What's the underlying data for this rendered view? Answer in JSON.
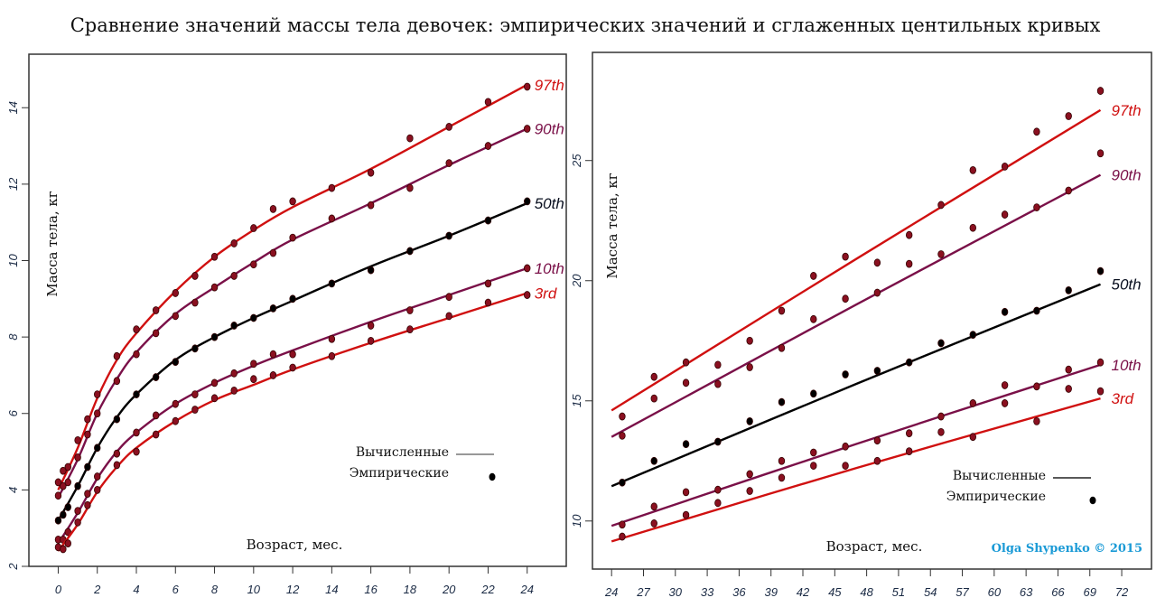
{
  "title": "Сравнение значений массы тела девочек:  эмпирических значений и сглаженных центильных кривых",
  "watermark": "Olga Shypenko  © 2015",
  "colors": {
    "p97": "#d01010",
    "p90": "#7a1048",
    "p50": "#000000",
    "p10": "#7a1048",
    "p3": "#d01010",
    "dot": "#8a1020",
    "legend_line": "#777777"
  },
  "legend": {
    "fitted": "Вычисленные",
    "empirical": "Эмпирические"
  },
  "chart_data": [
    {
      "type": "line",
      "xlabel": "Возраст, мес.",
      "ylabel": "Масса тела, кг",
      "xlim": [
        -1.5,
        26
      ],
      "ylim": [
        2,
        15.4
      ],
      "xticks": [
        0,
        2,
        4,
        6,
        8,
        10,
        12,
        14,
        16,
        18,
        20,
        22,
        24
      ],
      "yticks": [
        2,
        4,
        6,
        8,
        10,
        12,
        14
      ],
      "grid": false,
      "legend_position": "bottom-right",
      "empirical_x": [
        0,
        0.25,
        0.5,
        1,
        1.5,
        2,
        3,
        4,
        5,
        6,
        7,
        8,
        9,
        10,
        11,
        12,
        14,
        16,
        18,
        20,
        22,
        24
      ],
      "fitted_x": [
        0,
        1,
        2,
        3,
        4,
        6,
        8,
        10,
        12,
        16,
        20,
        24
      ],
      "series": [
        {
          "name": "97th",
          "color_key": "p97",
          "empirical": [
            4.2,
            4.5,
            4.6,
            5.3,
            5.85,
            6.5,
            7.5,
            8.2,
            8.7,
            9.15,
            9.6,
            10.1,
            10.45,
            10.85,
            11.35,
            11.55,
            11.9,
            12.3,
            13.2,
            13.5,
            14.15,
            14.55
          ],
          "fitted": [
            4.0,
            5.1,
            6.4,
            7.4,
            8.1,
            9.2,
            10.1,
            10.8,
            11.4,
            12.4,
            13.5,
            14.6
          ]
        },
        {
          "name": "90th",
          "color_key": "p90",
          "empirical": [
            3.85,
            4.1,
            4.2,
            4.85,
            5.45,
            6.0,
            6.85,
            7.55,
            8.1,
            8.55,
            8.9,
            9.3,
            9.6,
            9.9,
            10.2,
            10.6,
            11.1,
            11.45,
            11.9,
            12.55,
            13.0,
            13.45
          ],
          "fitted": [
            3.8,
            4.8,
            6.0,
            6.9,
            7.6,
            8.6,
            9.3,
            9.95,
            10.55,
            11.5,
            12.5,
            13.45
          ]
        },
        {
          "name": "50th",
          "color_key": "p50",
          "empirical": [
            3.2,
            3.35,
            3.55,
            4.1,
            4.6,
            5.1,
            5.85,
            6.5,
            6.95,
            7.35,
            7.7,
            8.0,
            8.3,
            8.5,
            8.75,
            9.0,
            9.4,
            9.75,
            10.25,
            10.65,
            11.05,
            11.55
          ],
          "fitted": [
            3.2,
            4.1,
            5.1,
            5.9,
            6.5,
            7.4,
            8.0,
            8.5,
            8.95,
            9.85,
            10.65,
            11.5
          ]
        },
        {
          "name": "10th",
          "color_key": "p10",
          "empirical": [
            2.7,
            2.7,
            2.9,
            3.45,
            3.9,
            4.35,
            4.95,
            5.5,
            5.95,
            6.25,
            6.5,
            6.8,
            7.05,
            7.3,
            7.55,
            7.55,
            7.95,
            8.3,
            8.7,
            9.05,
            9.4,
            9.8
          ],
          "fitted": [
            2.6,
            3.4,
            4.3,
            5.0,
            5.5,
            6.25,
            6.8,
            7.25,
            7.65,
            8.4,
            9.1,
            9.8
          ]
        },
        {
          "name": "3rd",
          "color_key": "p3",
          "empirical": [
            2.5,
            2.45,
            2.6,
            3.15,
            3.6,
            4.0,
            4.65,
            5.0,
            5.45,
            5.8,
            6.1,
            6.4,
            6.6,
            6.9,
            7.0,
            7.2,
            7.5,
            7.9,
            8.2,
            8.55,
            8.9,
            9.1
          ],
          "fitted": [
            2.4,
            3.1,
            3.95,
            4.6,
            5.1,
            5.8,
            6.35,
            6.75,
            7.15,
            7.85,
            8.5,
            9.15
          ]
        }
      ]
    },
    {
      "type": "line",
      "xlabel": "Возраст, мес.",
      "ylabel": "Масса тела, кг",
      "xlim": [
        22.2,
        74.8
      ],
      "ylim": [
        8,
        29.5
      ],
      "xticks": [
        24,
        27,
        30,
        33,
        36,
        39,
        42,
        45,
        48,
        51,
        54,
        57,
        60,
        63,
        66,
        69,
        72
      ],
      "yticks": [
        10,
        15,
        20,
        25
      ],
      "grid": false,
      "legend_position": "bottom-right",
      "empirical_x": [
        25,
        28,
        31,
        34,
        37,
        40,
        43,
        46,
        49,
        52,
        55,
        58,
        61,
        64,
        67,
        70
      ],
      "fitted_x": [
        24,
        47,
        70
      ],
      "series": [
        {
          "name": "97th",
          "color_key": "p97",
          "empirical": [
            14.35,
            16.0,
            16.6,
            16.5,
            17.5,
            18.75,
            20.2,
            21.0,
            20.75,
            21.9,
            23.15,
            24.6,
            24.75,
            26.2,
            26.85,
            27.9
          ],
          "fitted": [
            14.6,
            20.9,
            27.1
          ]
        },
        {
          "name": "90th",
          "color_key": "p90",
          "empirical": [
            13.55,
            15.1,
            15.75,
            15.7,
            16.4,
            17.2,
            18.4,
            19.25,
            19.5,
            20.7,
            21.1,
            22.2,
            22.75,
            23.05,
            23.75,
            25.3
          ],
          "fitted": [
            13.5,
            19.0,
            24.4
          ]
        },
        {
          "name": "50th",
          "color_key": "p50",
          "empirical": [
            11.6,
            12.5,
            13.2,
            13.3,
            14.15,
            14.95,
            15.3,
            16.1,
            16.25,
            16.6,
            17.4,
            17.75,
            18.7,
            18.75,
            19.6,
            20.4
          ],
          "fitted": [
            11.45,
            15.7,
            19.85
          ]
        },
        {
          "name": "10th",
          "color_key": "p10",
          "empirical": [
            9.85,
            10.6,
            11.2,
            11.3,
            11.95,
            12.5,
            12.85,
            13.1,
            13.35,
            13.65,
            14.35,
            14.9,
            15.65,
            15.6,
            16.3,
            16.6
          ],
          "fitted": [
            9.8,
            13.2,
            16.5
          ]
        },
        {
          "name": "3rd",
          "color_key": "p3",
          "empirical": [
            9.35,
            9.9,
            10.25,
            10.75,
            11.25,
            11.8,
            12.3,
            12.3,
            12.5,
            12.9,
            13.7,
            13.5,
            14.9,
            14.15,
            15.5,
            15.4
          ],
          "fitted": [
            9.15,
            12.2,
            15.1
          ]
        }
      ]
    }
  ]
}
